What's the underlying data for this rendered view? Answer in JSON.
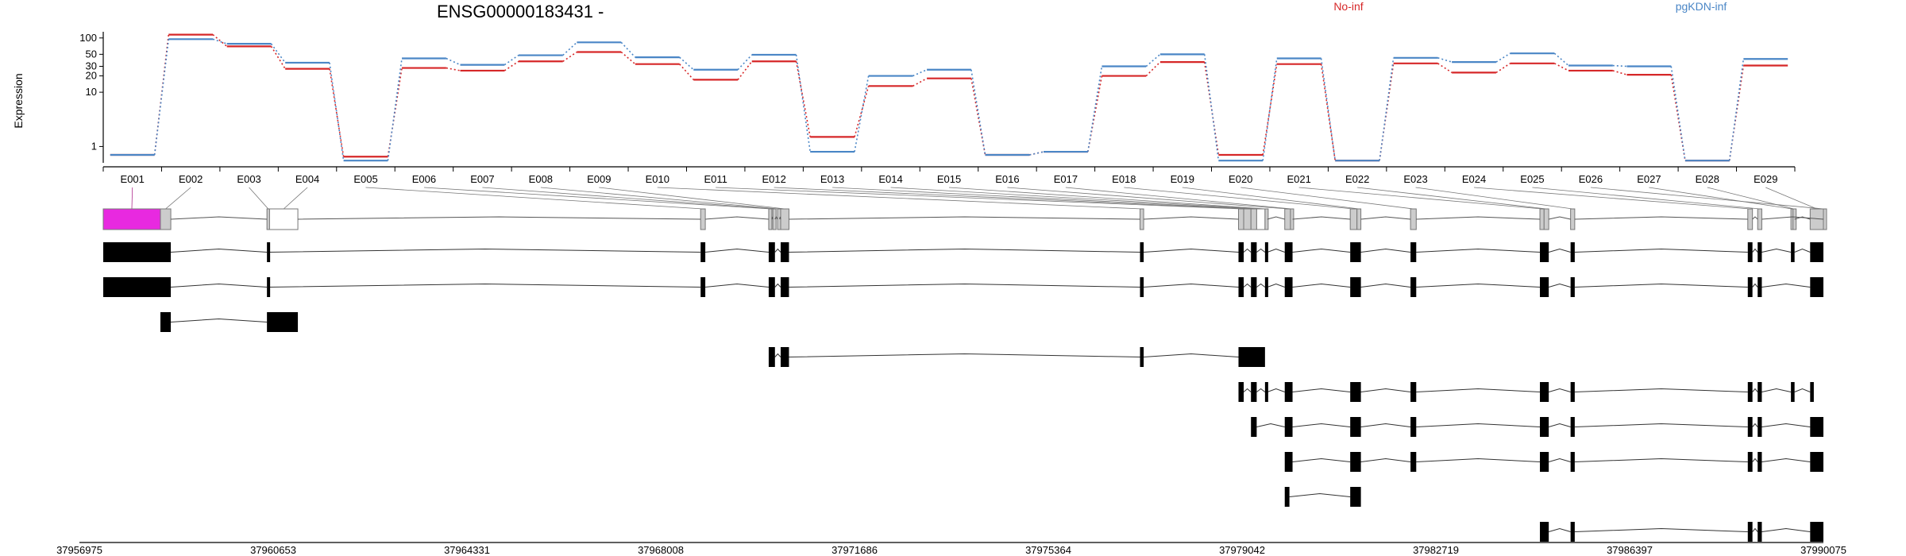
{
  "chart_data": {
    "type": "line",
    "title": "ENSG00000183431 -",
    "ylabel": "Expression",
    "yscale": "log",
    "ylim": [
      0.5,
      130
    ],
    "yticks": [
      1,
      10,
      20,
      30,
      50,
      100
    ],
    "categories": [
      "E001",
      "E002",
      "E003",
      "E004",
      "E005",
      "E006",
      "E007",
      "E008",
      "E009",
      "E010",
      "E011",
      "E012",
      "E013",
      "E014",
      "E015",
      "E016",
      "E017",
      "E018",
      "E019",
      "E020",
      "E021",
      "E022",
      "E023",
      "E024",
      "E025",
      "E026",
      "E027",
      "E028",
      "E029"
    ],
    "series": [
      {
        "name": "No-inf",
        "color": "#d62728",
        "values": [
          0.7,
          115,
          70,
          27,
          0.65,
          28,
          25,
          37,
          55,
          33,
          17,
          37,
          1.5,
          13,
          18,
          0.7,
          0.8,
          20,
          36,
          0.7,
          33,
          0.55,
          34,
          23,
          34,
          25,
          21,
          0.55,
          31
        ]
      },
      {
        "name": "pgKDN-inf",
        "color": "#4a86c6",
        "values": [
          0.7,
          95,
          78,
          35,
          0.55,
          42,
          32,
          48,
          83,
          44,
          26,
          49,
          0.8,
          20,
          26,
          0.7,
          0.8,
          30,
          50,
          0.55,
          42,
          0.55,
          43,
          36,
          52,
          31,
          30,
          0.55,
          41
        ]
      }
    ],
    "genomic_axis": {
      "range": [
        37956975,
        37990075
      ],
      "tick_labels": [
        "37956975",
        "37960653",
        "37964331",
        "37968008",
        "37971686",
        "37975364",
        "37979042",
        "37982719",
        "37986397",
        "37990075"
      ]
    },
    "exons": [
      {
        "id": "E001",
        "start": 37956975,
        "end": 37958075,
        "highlight": true
      },
      {
        "id": "E002",
        "start": 37958075,
        "end": 37958275
      },
      {
        "id": "E003",
        "start": 37960125,
        "end": 37960175
      },
      {
        "id": "E004",
        "start": 37960175,
        "end": 37960720,
        "outline": true
      },
      {
        "id": "E005",
        "start": 37968470,
        "end": 37968560
      },
      {
        "id": "E006",
        "start": 37969780,
        "end": 37969840
      },
      {
        "id": "E007",
        "start": 37969860,
        "end": 37969900
      },
      {
        "id": "E008",
        "start": 37969950,
        "end": 37969990
      },
      {
        "id": "E009",
        "start": 37970010,
        "end": 37970170
      },
      {
        "id": "E010",
        "start": 37976925,
        "end": 37976995
      },
      {
        "id": "E011",
        "start": 37978820,
        "end": 37978920
      },
      {
        "id": "E012",
        "start": 37978920,
        "end": 37979060
      },
      {
        "id": "E013",
        "start": 37979060,
        "end": 37979170
      },
      {
        "id": "E014",
        "start": 37979170,
        "end": 37979330,
        "outline": true
      },
      {
        "id": "E015",
        "start": 37979330,
        "end": 37979375
      },
      {
        "id": "E016",
        "start": 37979710,
        "end": 37979820
      },
      {
        "id": "E017",
        "start": 37979820,
        "end": 37979860
      },
      {
        "id": "E018",
        "start": 37980970,
        "end": 37981100
      },
      {
        "id": "E019",
        "start": 37981100,
        "end": 37981175
      },
      {
        "id": "E020",
        "start": 37982130,
        "end": 37982240
      },
      {
        "id": "E021",
        "start": 37984620,
        "end": 37984700
      },
      {
        "id": "E022",
        "start": 37984700,
        "end": 37984790
      },
      {
        "id": "E023",
        "start": 37985210,
        "end": 37985290
      },
      {
        "id": "E024",
        "start": 37988620,
        "end": 37988710
      },
      {
        "id": "E025",
        "start": 37988810,
        "end": 37988890
      },
      {
        "id": "E026",
        "start": 37990075,
        "end": 37990076
      },
      {
        "id": "E027",
        "start": 37989450,
        "end": 37989490
      },
      {
        "id": "E028",
        "start": 37989490,
        "end": 37989520
      },
      {
        "id": "E029",
        "start": 37989820,
        "end": 37990075
      }
    ],
    "transcripts": [
      {
        "exons": [
          [
            37956975,
            37958275
          ],
          [
            37960125,
            37960175
          ],
          [
            37968470,
            37968560
          ],
          [
            37969780,
            37969900
          ],
          [
            37970010,
            37970170
          ],
          [
            37976925,
            37976995
          ],
          [
            37978820,
            37978920
          ],
          [
            37979060,
            37979170
          ],
          [
            37979330,
            37979375
          ],
          [
            37979710,
            37979860
          ],
          [
            37980970,
            37981175
          ],
          [
            37982130,
            37982240
          ],
          [
            37984620,
            37984790
          ],
          [
            37985210,
            37985290
          ],
          [
            37988620,
            37988710
          ],
          [
            37988810,
            37988890
          ],
          [
            37989450,
            37989520
          ],
          [
            37989820,
            37990075
          ]
        ]
      },
      {
        "exons": [
          [
            37956975,
            37958275
          ],
          [
            37960125,
            37960175
          ],
          [
            37968470,
            37968560
          ],
          [
            37969780,
            37969900
          ],
          [
            37970010,
            37970170
          ],
          [
            37976925,
            37976995
          ],
          [
            37978820,
            37978920
          ],
          [
            37979060,
            37979170
          ],
          [
            37979330,
            37979375
          ],
          [
            37979710,
            37979860
          ],
          [
            37980970,
            37981175
          ],
          [
            37982130,
            37982240
          ],
          [
            37984620,
            37984790
          ],
          [
            37985210,
            37985290
          ],
          [
            37988620,
            37988710
          ],
          [
            37988810,
            37988890
          ],
          [
            37989820,
            37990075
          ]
        ]
      },
      {
        "exons": [
          [
            37958075,
            37958275
          ],
          [
            37960125,
            37960720
          ]
        ]
      },
      {
        "exons": [
          [
            37969780,
            37969900
          ],
          [
            37970010,
            37970170
          ],
          [
            37976925,
            37976995
          ],
          [
            37978820,
            37979330
          ]
        ]
      },
      {
        "exons": [
          [
            37978820,
            37978920
          ],
          [
            37979060,
            37979170
          ],
          [
            37979330,
            37979375
          ],
          [
            37979710,
            37979860
          ],
          [
            37980970,
            37981175
          ],
          [
            37982130,
            37982240
          ],
          [
            37984620,
            37984790
          ],
          [
            37985210,
            37985290
          ],
          [
            37988620,
            37988710
          ],
          [
            37988810,
            37988890
          ],
          [
            37989450,
            37989520
          ],
          [
            37989820,
            37989890
          ]
        ]
      },
      {
        "exons": [
          [
            37979060,
            37979170
          ],
          [
            37979710,
            37979860
          ],
          [
            37980970,
            37981175
          ],
          [
            37982130,
            37982240
          ],
          [
            37984620,
            37984790
          ],
          [
            37985210,
            37985290
          ],
          [
            37988620,
            37988710
          ],
          [
            37988810,
            37988890
          ],
          [
            37989820,
            37990075
          ]
        ]
      },
      {
        "exons": [
          [
            37979710,
            37979860
          ],
          [
            37980970,
            37981175
          ],
          [
            37982130,
            37982240
          ],
          [
            37984620,
            37984790
          ],
          [
            37985210,
            37985290
          ],
          [
            37988620,
            37988710
          ],
          [
            37988810,
            37988890
          ],
          [
            37989820,
            37990075
          ]
        ]
      },
      {
        "exons": [
          [
            37979710,
            37979800
          ],
          [
            37980970,
            37981175
          ]
        ]
      },
      {
        "exons": [
          [
            37984620,
            37984790
          ],
          [
            37985210,
            37985290
          ],
          [
            37988620,
            37988710
          ],
          [
            37988810,
            37988890
          ],
          [
            37989820,
            37990075
          ]
        ]
      }
    ]
  }
}
